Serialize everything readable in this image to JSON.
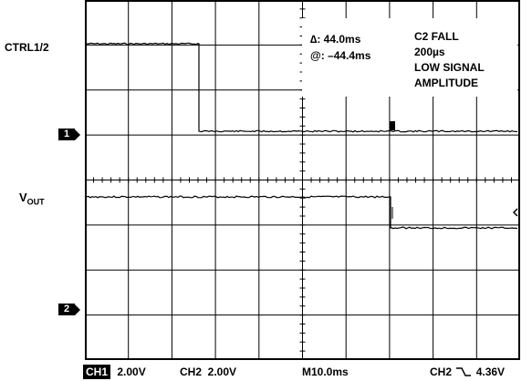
{
  "labels": {
    "ctrl": "CTRL1/2",
    "vout_main": "V",
    "vout_sub": "OUT",
    "marker1": "1",
    "marker2": "2"
  },
  "measure": {
    "delta": "∆: 44.0ms",
    "at": "@: –44.4ms"
  },
  "trigger_note": [
    "C2 FALL",
    "200µs",
    "LOW SIGNAL",
    "AMPLITUDE"
  ],
  "bottom": {
    "ch1_tag": "CH1",
    "ch1_scale": "2.00V",
    "ch2_scale": "CH2  2.00V",
    "timebase": "M10.0ms",
    "trigger_channel": "CH2",
    "trigger_slope_icon": "falling-edge-icon",
    "trigger_level": "4.36V"
  },
  "colors": {
    "trace": "#000000",
    "grid": "#000000",
    "background": "#ffffff"
  }
}
